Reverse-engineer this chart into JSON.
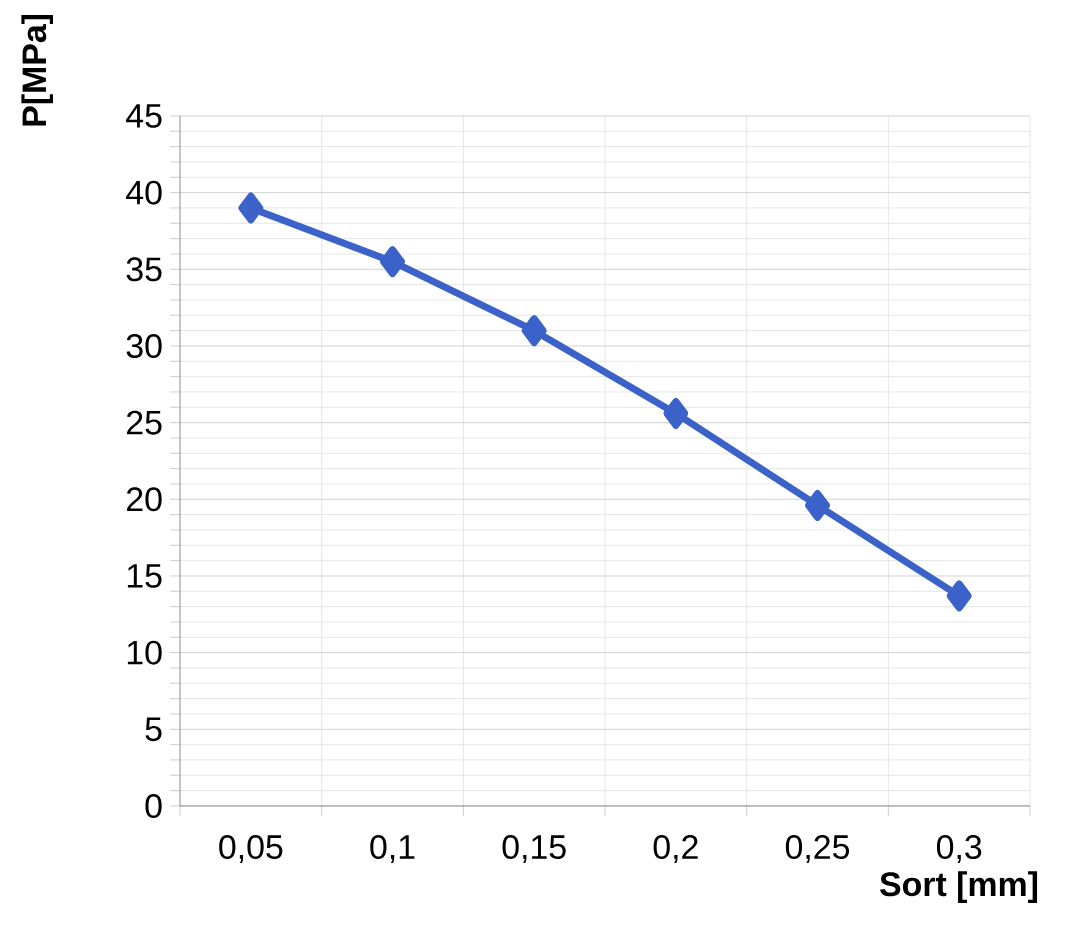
{
  "chart_data": {
    "type": "line",
    "xlabel": "Sort [mm]",
    "ylabel": "P[MPa]",
    "categories": [
      "0,05",
      "0,1",
      "0,15",
      "0,2",
      "0,25",
      "0,3"
    ],
    "values": [
      39,
      35.5,
      31,
      25.6,
      19.6,
      13.7
    ],
    "color": "#3a62c8",
    "marker": "diamond",
    "line_style": "solid",
    "ylim": [
      0,
      45
    ],
    "yticks": [
      0,
      5,
      10,
      15,
      20,
      25,
      30,
      35,
      40,
      45
    ],
    "grid": true
  }
}
